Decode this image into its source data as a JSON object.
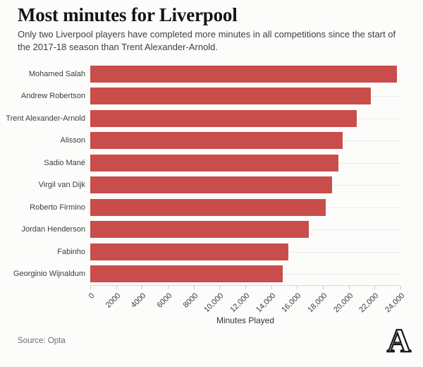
{
  "header": {
    "title": "Most minutes for Liverpool",
    "subtitle": "Only two Liverpool players have completed more minutes in all competitions since the start of the 2017-18 season than Trent Alexander-Arnold."
  },
  "chart_data": {
    "type": "bar",
    "orientation": "horizontal",
    "categories": [
      "Mohamed Salah",
      "Andrew Robertson",
      "Trent Alexander-Arnold",
      "Alisson",
      "Sadio Mané",
      "Virgil van Dijk",
      "Roberto Firmino",
      "Jordan Henderson",
      "Fabinho",
      "Georginio Wijnaldum"
    ],
    "values": [
      23700,
      21700,
      20600,
      19500,
      19200,
      18700,
      18200,
      16900,
      15300,
      14900
    ],
    "title": "Most minutes for Liverpool",
    "xlabel": "Minutes Played",
    "ylabel": "",
    "xlim": [
      0,
      24000
    ],
    "xticks": [
      0,
      2000,
      4000,
      6000,
      8000,
      10000,
      12000,
      14000,
      16000,
      18000,
      20000,
      22000,
      24000
    ],
    "xtick_labels": [
      "0",
      "2000",
      "4000",
      "6000",
      "8000",
      "10,000",
      "12,000",
      "14,000",
      "16,000",
      "18,000",
      "20,000",
      "22,000",
      "24,000"
    ],
    "grid": "horizontal category gridlines only",
    "legend": "none",
    "bar_color": "#c94d4a",
    "gridline_color": "#eaeaea",
    "axis_line_color": "#d9d9d9"
  },
  "footer": {
    "source": "Source: Opta",
    "logo_glyph": "A",
    "logo_name": "the-athletic-logo"
  }
}
